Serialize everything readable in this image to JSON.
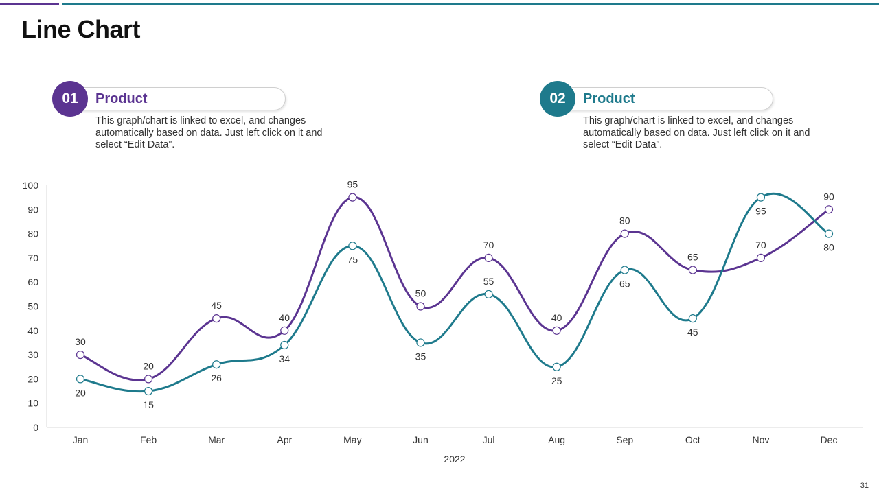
{
  "slide": {
    "title": "Line Chart",
    "page_number": "31"
  },
  "legend": [
    {
      "number": "01",
      "name": "Product",
      "description": "This graph/chart is linked to excel, and changes automatically based on data. Just left click on it and select “Edit Data”.",
      "color": "#5b3491"
    },
    {
      "number": "02",
      "name": "Product",
      "description": "This graph/chart is linked to excel, and changes automatically based on data. Just left click on it and select “Edit Data”.",
      "color": "#1e7a8c"
    }
  ],
  "chart_data": {
    "type": "line",
    "title": "",
    "xlabel": "2022",
    "ylabel": "",
    "categories": [
      "Jan",
      "Feb",
      "Mar",
      "Apr",
      "May",
      "Jun",
      "Jul",
      "Aug",
      "Sep",
      "Oct",
      "Nov",
      "Dec"
    ],
    "ylim": [
      0,
      100
    ],
    "yticks": [
      0,
      10,
      20,
      30,
      40,
      50,
      60,
      70,
      80,
      90,
      100
    ],
    "grid": false,
    "series": [
      {
        "name": "Product 01",
        "color": "#5b3491",
        "values": [
          30,
          20,
          45,
          40,
          95,
          50,
          70,
          40,
          80,
          65,
          70,
          90
        ],
        "label_position": [
          "above",
          "above",
          "above",
          "above",
          "above",
          "above",
          "above",
          "above",
          "above",
          "above",
          "above",
          "above"
        ]
      },
      {
        "name": "Product 02",
        "color": "#1e7a8c",
        "values": [
          20,
          15,
          26,
          34,
          75,
          35,
          55,
          25,
          65,
          45,
          95,
          80
        ],
        "label_position": [
          "below",
          "below",
          "below",
          "below",
          "below",
          "below",
          "above",
          "below",
          "below",
          "below",
          "below",
          "below"
        ]
      }
    ]
  }
}
